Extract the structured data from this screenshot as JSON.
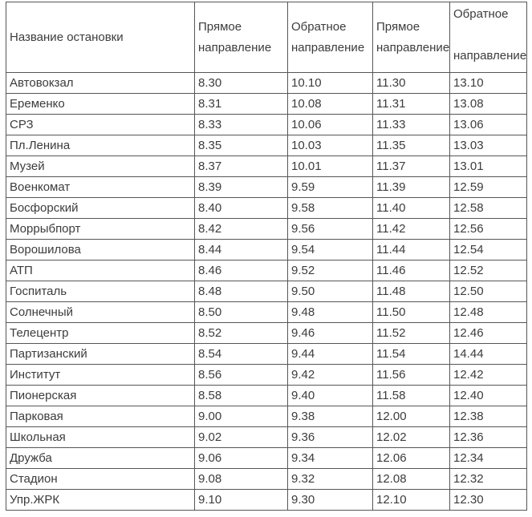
{
  "colors": {
    "border": "#565656",
    "text": "#3c3c3c",
    "background": "#ffffff"
  },
  "table": {
    "columns": [
      {
        "label": "Название остановки"
      },
      {
        "label": "Прямое направление"
      },
      {
        "label": "Обратное направление"
      },
      {
        "label": "Прямое направление"
      },
      {
        "label": "Обратное\n\nнаправление"
      }
    ],
    "rows": [
      {
        "stop": "Автовокзал",
        "times": [
          "8.30",
          "10.10",
          "11.30",
          "13.10"
        ]
      },
      {
        "stop": "Еременко",
        "times": [
          "8.31",
          "10.08",
          "11.31",
          "13.08"
        ]
      },
      {
        "stop": "СРЗ",
        "times": [
          "8.33",
          "10.06",
          "11.33",
          "13.06"
        ]
      },
      {
        "stop": "Пл.Ленина",
        "times": [
          "8.35",
          "10.03",
          "11.35",
          "13.03"
        ]
      },
      {
        "stop": "Музей",
        "times": [
          "8.37",
          "10.01",
          "11.37",
          "13.01"
        ]
      },
      {
        "stop": "Военкомат",
        "times": [
          "8.39",
          "9.59",
          "11.39",
          "12.59"
        ]
      },
      {
        "stop": "Босфорский",
        "times": [
          "8.40",
          "9.58",
          "11.40",
          "12.58"
        ]
      },
      {
        "stop": "Моррыбпорт",
        "times": [
          "8.42",
          "9.56",
          "11.42",
          "12.56"
        ]
      },
      {
        "stop": "Ворошилова",
        "times": [
          "8.44",
          "9.54",
          "11.44",
          "12.54"
        ]
      },
      {
        "stop": "АТП",
        "times": [
          "8.46",
          "9.52",
          "11.46",
          "12.52"
        ]
      },
      {
        "stop": "Госпиталь",
        "times": [
          "8.48",
          "9.50",
          "11.48",
          "12.50"
        ]
      },
      {
        "stop": "Солнечный",
        "times": [
          "8.50",
          "9.48",
          "11.50",
          "12.48"
        ]
      },
      {
        "stop": "Телецентр",
        "times": [
          "8.52",
          "9.46",
          "11.52",
          "12.46"
        ]
      },
      {
        "stop": "Партизанский",
        "times": [
          "8.54",
          "9.44",
          "11.54",
          "14.44"
        ]
      },
      {
        "stop": "Институт",
        "times": [
          "8.56",
          "9.42",
          "11.56",
          "12.42"
        ]
      },
      {
        "stop": "Пионерская",
        "times": [
          "8.58",
          "9.40",
          "11.58",
          "12.40"
        ]
      },
      {
        "stop": "Парковая",
        "times": [
          "9.00",
          "9.38",
          "12.00",
          "12.38"
        ]
      },
      {
        "stop": "Школьная",
        "times": [
          "9.02",
          "9.36",
          "12.02",
          "12.36"
        ]
      },
      {
        "stop": "Дружба",
        "times": [
          "9.06",
          "9.34",
          "12.06",
          "12.34"
        ]
      },
      {
        "stop": "Стадион",
        "times": [
          "9.08",
          "9.32",
          "12.08",
          "12.32"
        ]
      },
      {
        "stop": "Упр.ЖРК",
        "times": [
          "9.10",
          "9.30",
          "12.10",
          "12.30"
        ]
      }
    ]
  }
}
